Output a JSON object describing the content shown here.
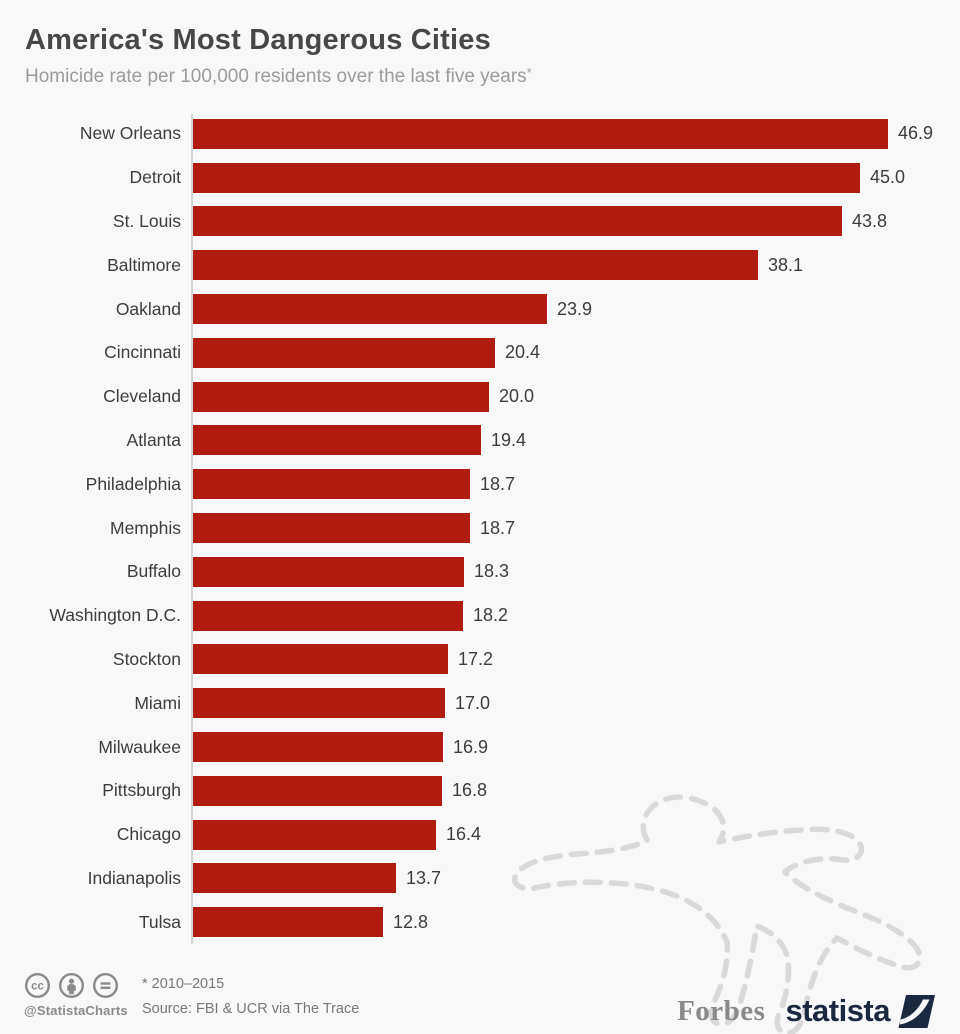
{
  "header": {
    "title": "America's Most Dangerous Cities",
    "subtitle_text": "Homicide rate per 100,000 residents over the last five years",
    "footnote_marker": "*"
  },
  "chart_data": {
    "type": "bar",
    "orientation": "horizontal",
    "title": "America's Most Dangerous Cities",
    "subtitle": "Homicide rate per 100,000 residents over the last five years*",
    "categories": [
      "New Orleans",
      "Detroit",
      "St. Louis",
      "Baltimore",
      "Oakland",
      "Cincinnati",
      "Cleveland",
      "Atlanta",
      "Philadelphia",
      "Memphis",
      "Buffalo",
      "Washington D.C.",
      "Stockton",
      "Miami",
      "Milwaukee",
      "Pittsburgh",
      "Chicago",
      "Indianapolis",
      "Tulsa"
    ],
    "values": [
      46.9,
      45.0,
      43.8,
      38.1,
      23.9,
      20.4,
      20.0,
      19.4,
      18.7,
      18.7,
      18.3,
      18.2,
      17.2,
      17.0,
      16.9,
      16.8,
      16.4,
      13.7,
      12.8
    ],
    "value_labels": [
      "46.9",
      "45.0",
      "43.8",
      "38.1",
      "23.9",
      "20.4",
      "20.0",
      "19.4",
      "18.7",
      "18.7",
      "18.3",
      "18.2",
      "17.2",
      "17.0",
      "16.9",
      "16.8",
      "16.4",
      "13.7",
      "12.8"
    ],
    "xlim": [
      0,
      47
    ],
    "grid": false,
    "legend": false,
    "bar_color": "#b01c10",
    "unit": "homicide rate per 100,000 residents"
  },
  "decor": {
    "chalk_outline": "body-chalk-outline-illustration",
    "outline_color": "#d9d9d9"
  },
  "footer": {
    "footnote": "* 2010–2015",
    "source": "Source: FBI & UCR via The Trace",
    "credit": "@StatistaCharts",
    "license_icons": [
      "cc-icon",
      "cc-by-person-icon",
      "cc-nd-equals-icon"
    ],
    "publisher": "Forbes",
    "brand": "statista"
  },
  "colors": {
    "background": "#f8f8f8",
    "bar": "#b01c10",
    "title_text": "#474747",
    "subtitle_text": "#9b9b9b",
    "label_text": "#3d3d3d",
    "footer_text": "#787878",
    "icon_gray": "#8a8a8a",
    "brand_navy": "#1b2940",
    "axis_line": "#d6d6d6"
  }
}
